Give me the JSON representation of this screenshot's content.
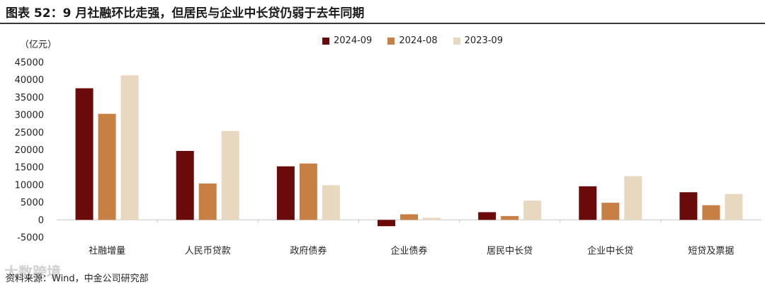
{
  "title": "图表 52：9 月社融环比走强，但居民与企业中长贷仍弱于去年同期",
  "unit": "（亿元）",
  "source": "资料来源：Wind，中金公司研究部",
  "watermark": "大数跨境",
  "chart_data": {
    "type": "bar",
    "categories": [
      "社融增量",
      "人民币贷款",
      "政府债券",
      "企业债券",
      "居民中长贷",
      "企业中长贷",
      "短贷及票据"
    ],
    "series": [
      {
        "name": "2024-09",
        "color": "#6b0a0a",
        "values": [
          37600,
          19700,
          15300,
          -1800,
          2200,
          9600,
          7900
        ]
      },
      {
        "name": "2024-08",
        "color": "#c87f44",
        "values": [
          30300,
          10400,
          16100,
          1600,
          1100,
          4900,
          4200
        ]
      },
      {
        "name": "2023-09",
        "color": "#e8d8c0",
        "values": [
          41300,
          25400,
          9900,
          600,
          5500,
          12500,
          7400
        ]
      }
    ],
    "yticks": [
      "45000",
      "40000",
      "35000",
      "30000",
      "25000",
      "20000",
      "15000",
      "10000",
      "5000",
      "0",
      "-5000"
    ],
    "ylim": [
      -5000,
      45000
    ],
    "legend_position": "top-center",
    "grid": false
  }
}
